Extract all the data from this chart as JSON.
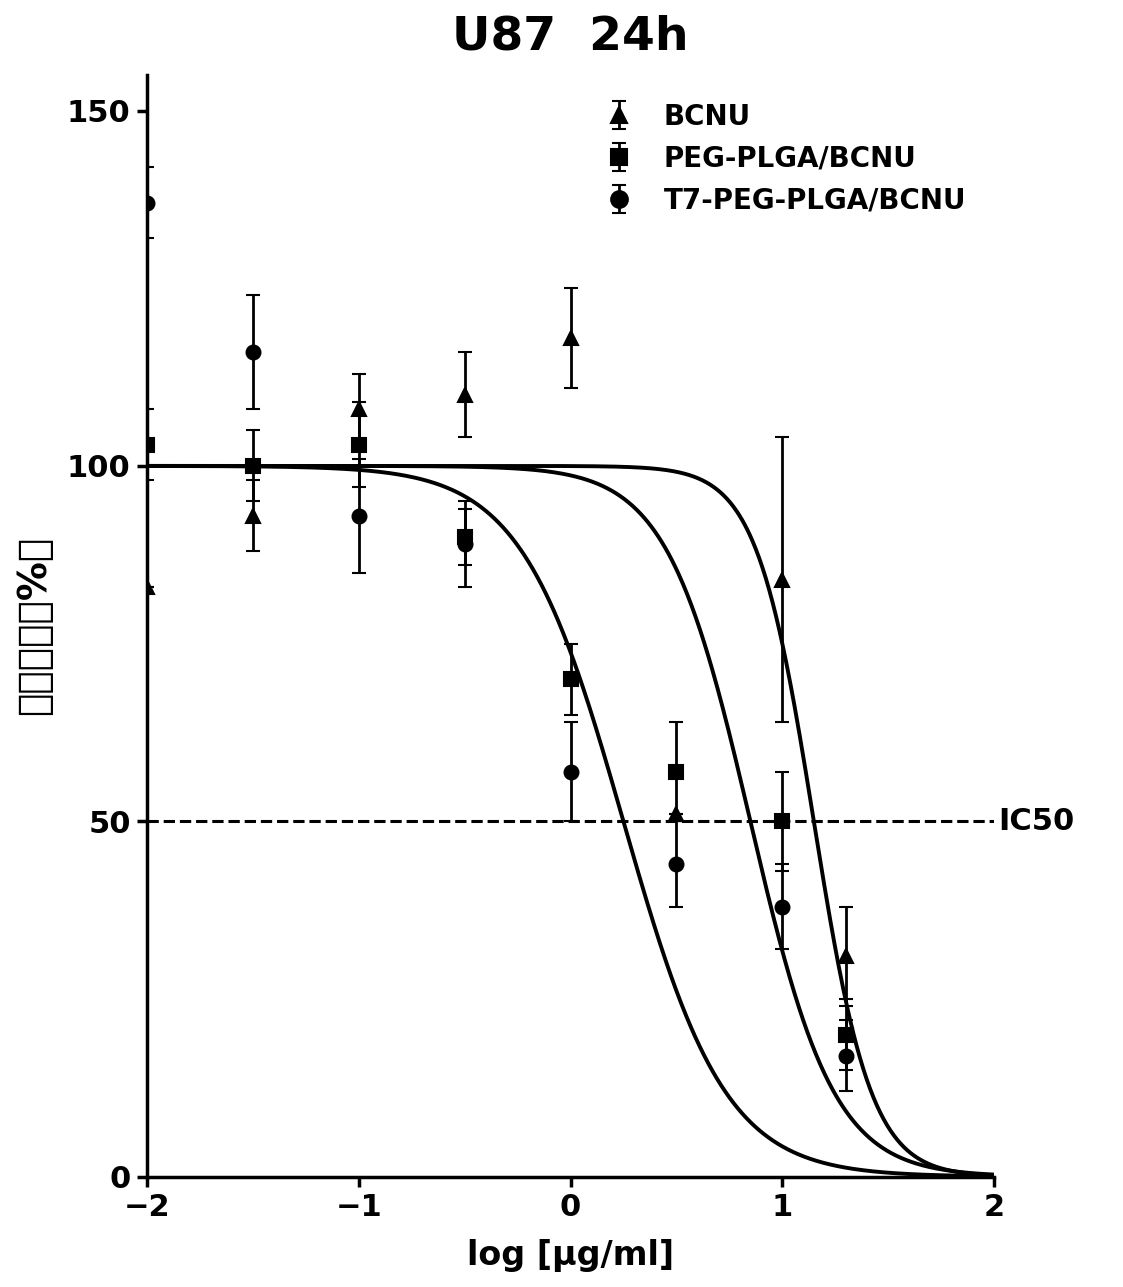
{
  "title": "U87  24h",
  "xlabel": "log [μg/ml]",
  "ylabel": "细胞活性（%）",
  "xlim": [
    -2,
    2
  ],
  "ylim": [
    0,
    155
  ],
  "yticks": [
    0,
    50,
    100,
    150
  ],
  "xticks": [
    -2,
    -1,
    0,
    1,
    2
  ],
  "ic50_label": "IC50",
  "ic50_y": 50,
  "background_color": "#ffffff",
  "series": [
    {
      "name": "BCNU",
      "marker": "^",
      "color": "#000000",
      "x": [
        -2.0,
        -1.5,
        -1.0,
        -0.5,
        0.0,
        0.5,
        1.0,
        1.3
      ],
      "y": [
        83,
        93,
        108,
        110,
        118,
        51,
        84,
        31
      ],
      "yerr": [
        0,
        5,
        5,
        6,
        7,
        0,
        20,
        7
      ],
      "ic50_log": 1.15,
      "hill": 3.2,
      "top": 100,
      "bottom": 0
    },
    {
      "name": "PEG-PLGA/BCNU",
      "marker": "s",
      "color": "#000000",
      "x": [
        -2.0,
        -1.5,
        -1.0,
        -0.5,
        0.0,
        0.5,
        1.0,
        1.3
      ],
      "y": [
        103,
        100,
        103,
        90,
        70,
        57,
        50,
        20
      ],
      "yerr": [
        5,
        5,
        6,
        4,
        5,
        7,
        7,
        5
      ],
      "ic50_log": 0.85,
      "hill": 2.2,
      "top": 100,
      "bottom": 0
    },
    {
      "name": "T7-PEG-PLGA/BCNU",
      "marker": "o",
      "color": "#000000",
      "x": [
        -2.0,
        -1.5,
        -1.0,
        -0.5,
        0.0,
        0.5,
        1.0,
        1.3
      ],
      "y": [
        137,
        116,
        93,
        89,
        57,
        44,
        38,
        17
      ],
      "yerr": [
        5,
        8,
        8,
        6,
        7,
        6,
        6,
        5
      ],
      "ic50_log": 0.25,
      "hill": 1.8,
      "top": 100,
      "bottom": 0
    }
  ]
}
